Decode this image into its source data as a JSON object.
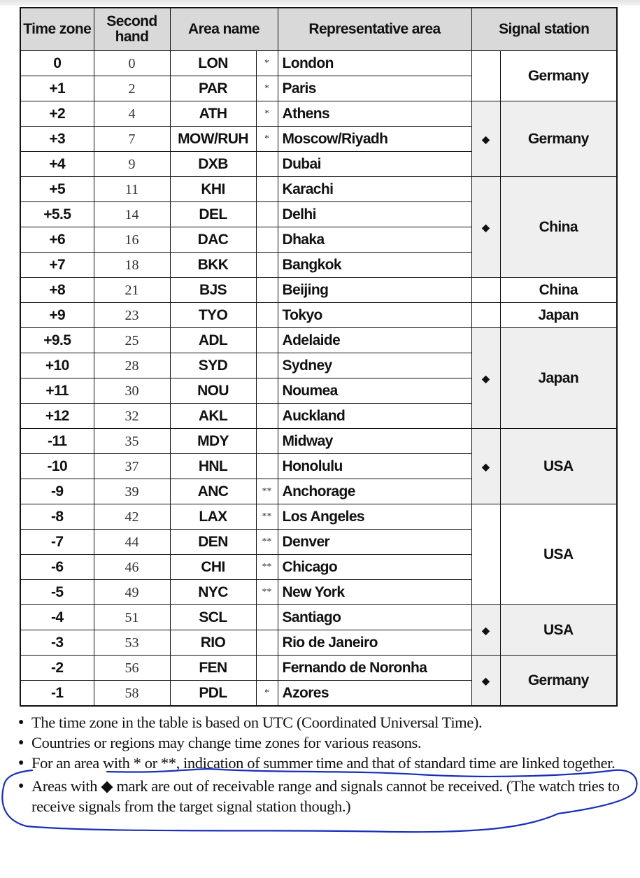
{
  "headers": {
    "time_zone": "Time zone",
    "second_hand": "Second hand",
    "area_name": "Area name",
    "representative_area": "Representative area",
    "signal_station": "Signal station"
  },
  "rows": [
    {
      "tz": "0",
      "sec": "0",
      "code": "LON",
      "mark": "*",
      "city": "London"
    },
    {
      "tz": "+1",
      "sec": "2",
      "code": "PAR",
      "mark": "*",
      "city": "Paris"
    },
    {
      "tz": "+2",
      "sec": "4",
      "code": "ATH",
      "mark": "*",
      "city": "Athens"
    },
    {
      "tz": "+3",
      "sec": "7",
      "code": "MOW/RUH",
      "mark": "*",
      "city": "Moscow/Riyadh"
    },
    {
      "tz": "+4",
      "sec": "9",
      "code": "DXB",
      "mark": "",
      "city": "Dubai"
    },
    {
      "tz": "+5",
      "sec": "11",
      "code": "KHI",
      "mark": "",
      "city": "Karachi"
    },
    {
      "tz": "+5.5",
      "sec": "14",
      "code": "DEL",
      "mark": "",
      "city": "Delhi"
    },
    {
      "tz": "+6",
      "sec": "16",
      "code": "DAC",
      "mark": "",
      "city": "Dhaka"
    },
    {
      "tz": "+7",
      "sec": "18",
      "code": "BKK",
      "mark": "",
      "city": "Bangkok"
    },
    {
      "tz": "+8",
      "sec": "21",
      "code": "BJS",
      "mark": "",
      "city": "Beijing"
    },
    {
      "tz": "+9",
      "sec": "23",
      "code": "TYO",
      "mark": "",
      "city": "Tokyo"
    },
    {
      "tz": "+9.5",
      "sec": "25",
      "code": "ADL",
      "mark": "",
      "city": "Adelaide"
    },
    {
      "tz": "+10",
      "sec": "28",
      "code": "SYD",
      "mark": "",
      "city": "Sydney"
    },
    {
      "tz": "+11",
      "sec": "30",
      "code": "NOU",
      "mark": "",
      "city": "Noumea"
    },
    {
      "tz": "+12",
      "sec": "32",
      "code": "AKL",
      "mark": "",
      "city": "Auckland"
    },
    {
      "tz": "-11",
      "sec": "35",
      "code": "MDY",
      "mark": "",
      "city": "Midway"
    },
    {
      "tz": "-10",
      "sec": "37",
      "code": "HNL",
      "mark": "",
      "city": "Honolulu"
    },
    {
      "tz": "-9",
      "sec": "39",
      "code": "ANC",
      "mark": "**",
      "city": "Anchorage"
    },
    {
      "tz": "-8",
      "sec": "42",
      "code": "LAX",
      "mark": "**",
      "city": "Los Angeles"
    },
    {
      "tz": "-7",
      "sec": "44",
      "code": "DEN",
      "mark": "**",
      "city": "Denver"
    },
    {
      "tz": "-6",
      "sec": "46",
      "code": "CHI",
      "mark": "**",
      "city": "Chicago"
    },
    {
      "tz": "-5",
      "sec": "49",
      "code": "NYC",
      "mark": "**",
      "city": "New York"
    },
    {
      "tz": "-4",
      "sec": "51",
      "code": "SCL",
      "mark": "",
      "city": "Santiago"
    },
    {
      "tz": "-3",
      "sec": "53",
      "code": "RIO",
      "mark": "",
      "city": "Rio de Janeiro"
    },
    {
      "tz": "-2",
      "sec": "56",
      "code": "FEN",
      "mark": "",
      "city": "Fernando de Noronha"
    },
    {
      "tz": "-1",
      "sec": "58",
      "code": "PDL",
      "mark": "*",
      "city": "Azores"
    }
  ],
  "stations": [
    {
      "span": 2,
      "out_of_range": false,
      "name": "Germany"
    },
    {
      "span": 3,
      "out_of_range": true,
      "name": "Germany"
    },
    {
      "span": 4,
      "out_of_range": true,
      "name": "China"
    },
    {
      "span": 1,
      "out_of_range": false,
      "name": "China"
    },
    {
      "span": 1,
      "out_of_range": false,
      "name": "Japan"
    },
    {
      "span": 4,
      "out_of_range": true,
      "name": "Japan"
    },
    {
      "span": 3,
      "out_of_range": true,
      "name": "USA"
    },
    {
      "span": 4,
      "out_of_range": false,
      "name": "USA"
    },
    {
      "span": 2,
      "out_of_range": true,
      "name": "USA"
    },
    {
      "span": 2,
      "out_of_range": true,
      "name": "Germany"
    }
  ],
  "diamond_mark": "◆",
  "notes": [
    "The time zone in the table is based on UTC (Coordinated Universal Time).",
    "Countries or regions may change time zones for various reasons.",
    "For an area with * or **, indication of summer time and that of standard time are linked together.",
    "Areas with ◆ mark are out of receivable range and signals cannot be received. (The watch tries to receive signals from the target signal station though.)"
  ],
  "colors": {
    "header_bg": "#d9d9d9",
    "out_of_range_bg": "#efefef",
    "annotation_ink": "#1a2fb8"
  }
}
